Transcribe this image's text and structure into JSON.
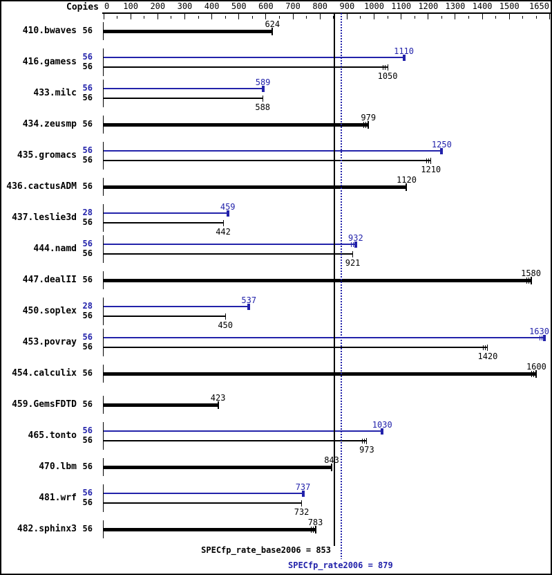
{
  "header": {
    "copies_label": "Copies"
  },
  "colors": {
    "peak": "#2222aa",
    "base": "#000000",
    "background": "#ffffff"
  },
  "chart_data": {
    "type": "bar",
    "title": "",
    "xlabel": "",
    "ylabel": "",
    "axis": {
      "min": 0,
      "max": 1650,
      "major_ticks": [
        0,
        100,
        200,
        300,
        400,
        500,
        600,
        700,
        800,
        900,
        1000,
        1100,
        1200,
        1300,
        1400,
        1500,
        1650
      ],
      "minor_ticks": [
        50,
        150,
        250,
        350,
        450,
        550,
        650,
        750,
        850,
        950,
        1050,
        1150,
        1250,
        1350,
        1450,
        1550,
        1600
      ],
      "grid": false,
      "legend_position": "none"
    },
    "benchmarks": [
      {
        "name": "410.bwaves",
        "bars": [
          {
            "role": "base",
            "copies": 56,
            "value": 624,
            "thick": true,
            "marks": false
          }
        ]
      },
      {
        "name": "416.gamess",
        "bars": [
          {
            "role": "peak",
            "copies": 56,
            "value": 1110,
            "thick": false,
            "marks": false
          },
          {
            "role": "base",
            "copies": 56,
            "value": 1050,
            "thick": false,
            "marks": true
          }
        ]
      },
      {
        "name": "433.milc",
        "bars": [
          {
            "role": "peak",
            "copies": 56,
            "value": 589,
            "thick": false,
            "marks": false
          },
          {
            "role": "base",
            "copies": 56,
            "value": 588,
            "thick": false,
            "marks": false
          }
        ]
      },
      {
        "name": "434.zeusmp",
        "bars": [
          {
            "role": "base",
            "copies": 56,
            "value": 979,
            "thick": true,
            "marks": true
          }
        ]
      },
      {
        "name": "435.gromacs",
        "bars": [
          {
            "role": "peak",
            "copies": 56,
            "value": 1250,
            "thick": false,
            "marks": false
          },
          {
            "role": "base",
            "copies": 56,
            "value": 1210,
            "thick": false,
            "marks": true
          }
        ]
      },
      {
        "name": "436.cactusADM",
        "bars": [
          {
            "role": "base",
            "copies": 56,
            "value": 1120,
            "thick": true,
            "marks": false
          }
        ]
      },
      {
        "name": "437.leslie3d",
        "bars": [
          {
            "role": "peak",
            "copies": 28,
            "value": 459,
            "thick": false,
            "marks": false
          },
          {
            "role": "base",
            "copies": 56,
            "value": 442,
            "thick": false,
            "marks": false
          }
        ]
      },
      {
        "name": "444.namd",
        "bars": [
          {
            "role": "peak",
            "copies": 56,
            "value": 932,
            "thick": false,
            "marks": true
          },
          {
            "role": "base",
            "copies": 56,
            "value": 921,
            "thick": false,
            "marks": false
          }
        ]
      },
      {
        "name": "447.dealII",
        "bars": [
          {
            "role": "base",
            "copies": 56,
            "value": 1580,
            "thick": true,
            "marks": true
          }
        ]
      },
      {
        "name": "450.soplex",
        "bars": [
          {
            "role": "peak",
            "copies": 28,
            "value": 537,
            "thick": false,
            "marks": false
          },
          {
            "role": "base",
            "copies": 56,
            "value": 450,
            "thick": false,
            "marks": false
          }
        ]
      },
      {
        "name": "453.povray",
        "bars": [
          {
            "role": "peak",
            "copies": 56,
            "value": 1630,
            "thick": false,
            "marks": true
          },
          {
            "role": "base",
            "copies": 56,
            "value": 1420,
            "thick": false,
            "marks": true
          }
        ]
      },
      {
        "name": "454.calculix",
        "bars": [
          {
            "role": "base",
            "copies": 56,
            "value": 1600,
            "thick": true,
            "marks": true
          }
        ]
      },
      {
        "name": "459.GemsFDTD",
        "bars": [
          {
            "role": "base",
            "copies": 56,
            "value": 423,
            "thick": true,
            "marks": false
          }
        ]
      },
      {
        "name": "465.tonto",
        "bars": [
          {
            "role": "peak",
            "copies": 56,
            "value": 1030,
            "thick": false,
            "marks": false
          },
          {
            "role": "base",
            "copies": 56,
            "value": 973,
            "thick": false,
            "marks": true
          }
        ]
      },
      {
        "name": "470.lbm",
        "bars": [
          {
            "role": "base",
            "copies": 56,
            "value": 843,
            "thick": true,
            "marks": false
          }
        ]
      },
      {
        "name": "481.wrf",
        "bars": [
          {
            "role": "peak",
            "copies": 56,
            "value": 737,
            "thick": false,
            "marks": false
          },
          {
            "role": "base",
            "copies": 56,
            "value": 732,
            "thick": false,
            "marks": false
          }
        ]
      },
      {
        "name": "482.sphinx3",
        "bars": [
          {
            "role": "base",
            "copies": 56,
            "value": 783,
            "thick": true,
            "marks": true
          }
        ]
      }
    ],
    "reference_lines": [
      {
        "name": "base_mean",
        "label": "SPECfp_rate_base2006 = 853",
        "value": 853,
        "color": "#000000",
        "style": "solid"
      },
      {
        "name": "peak_mean",
        "label": "SPECfp_rate2006 = 879",
        "value": 879,
        "color": "#2222aa",
        "style": "dotted"
      }
    ]
  }
}
